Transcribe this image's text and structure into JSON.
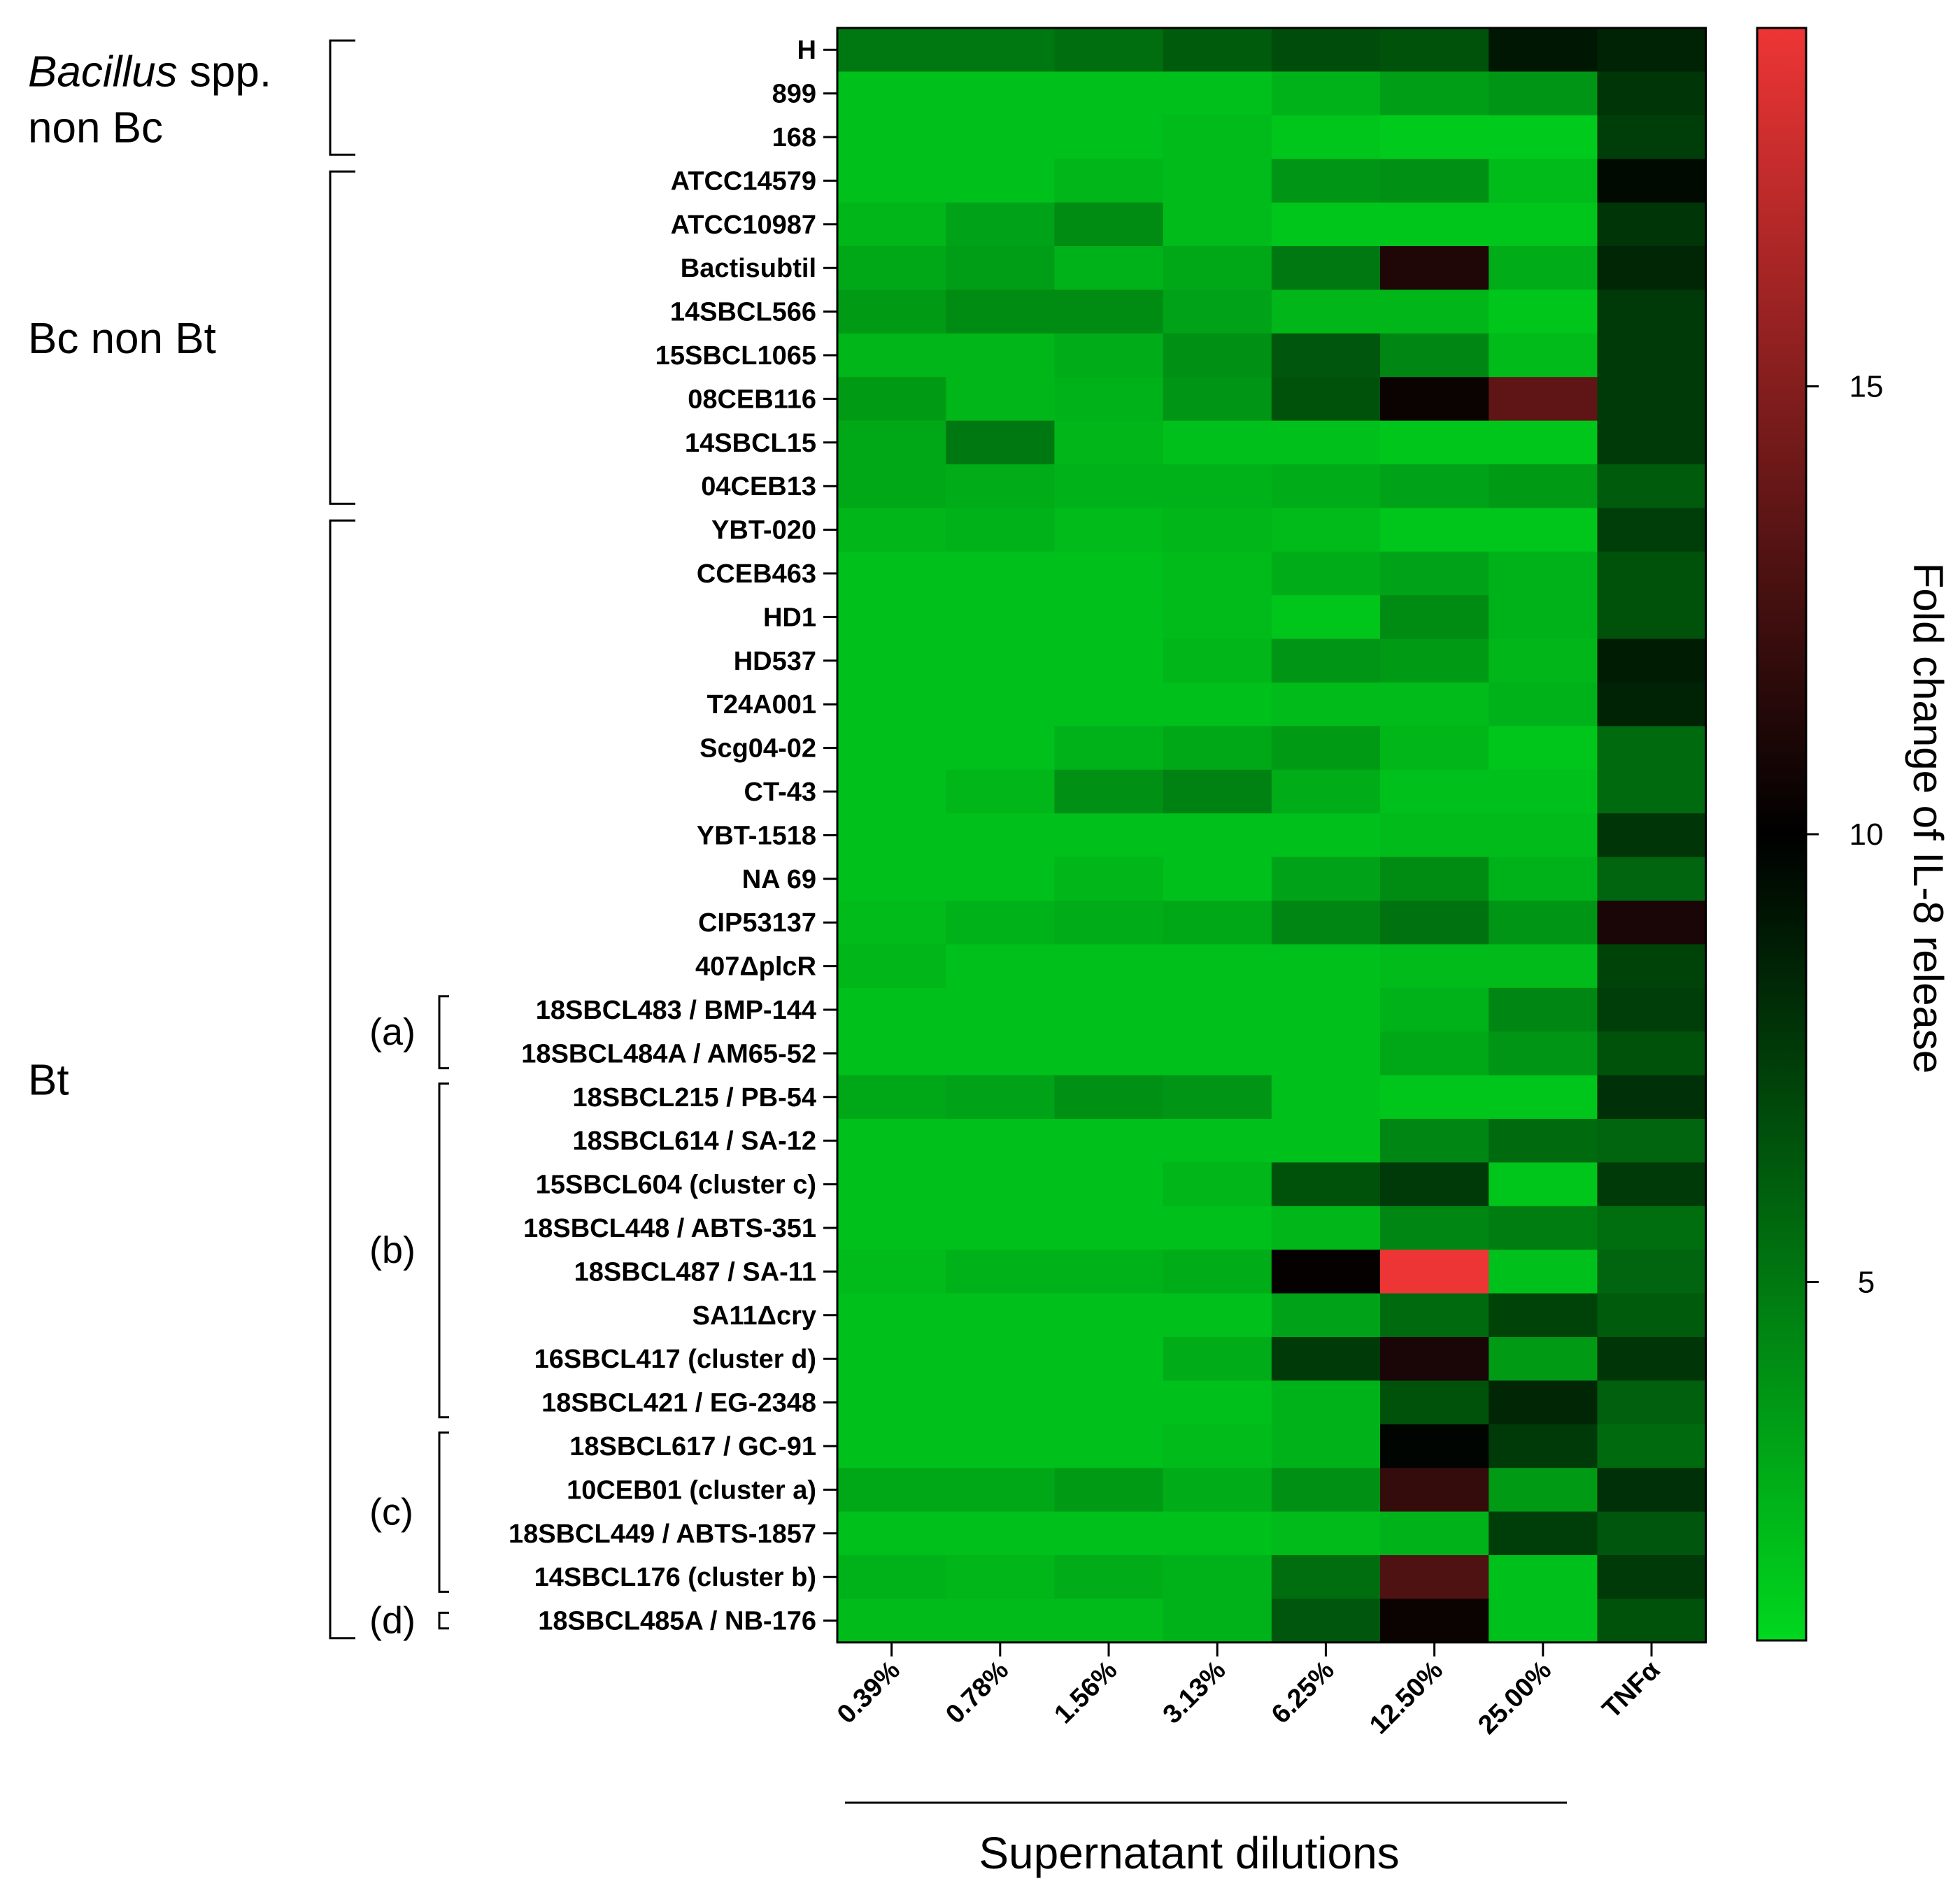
{
  "chart_data": {
    "type": "heatmap",
    "xlabel": "Supernatant dilutions",
    "colorbar": {
      "label": "Fold change of IL-8 release",
      "range": [
        1,
        19
      ],
      "ticks": [
        5,
        10,
        15
      ],
      "colors": {
        "low": "#00d81e",
        "mid": "#000000",
        "high": "#ee3535"
      },
      "mid_value": 10
    },
    "columns": [
      "0.39%",
      "0.78%",
      "1.56%",
      "3.13%",
      "6.25%",
      "12.50%",
      "25.00%",
      "TNFα"
    ],
    "rows": [
      "H",
      "899",
      "168",
      "ATCC14579",
      "ATCC10987",
      "Bactisubtil",
      "14SBCL566",
      "15SBCL1065",
      "08CEB116",
      "14SBCL15",
      "04CEB13",
      "YBT-020",
      "CCEB463",
      "HD1",
      "HD537",
      "T24A001",
      "Scg04-02",
      "CT-43",
      "YBT-1518",
      "NA 69",
      "CIP53137",
      "407ΔplcR",
      "18SBCL483 / BMP-144",
      "18SBCL484A / AM65-52",
      "18SBCL215 / PB-54",
      "18SBCL614 / SA-12",
      "15SBCL604 (cluster c)",
      "18SBCL448 / ABTS-351",
      "18SBCL487 / SA-11",
      "SA11Δcry",
      "16SBCL417 (cluster d)",
      "18SBCL421 / EG-2348",
      "18SBCL617 / GC-91",
      "10CEB01 (cluster a)",
      "18SBCL449 / ABTS-1857",
      "14SBCL176 (cluster b)",
      "18SBCL485A / NB-176"
    ],
    "values": [
      [
        5.0,
        5.0,
        5.4,
        6.2,
        6.8,
        6.6,
        9.0,
        8.6
      ],
      [
        2.0,
        2.0,
        2.0,
        2.0,
        2.6,
        3.4,
        3.8,
        7.8
      ],
      [
        2.0,
        2.0,
        2.0,
        2.2,
        1.8,
        1.6,
        1.6,
        7.4
      ],
      [
        2.0,
        2.0,
        2.4,
        2.2,
        3.8,
        4.0,
        2.2,
        9.6
      ],
      [
        2.4,
        3.2,
        4.2,
        2.2,
        1.8,
        1.8,
        1.8,
        7.8
      ],
      [
        3.0,
        3.4,
        2.6,
        3.0,
        5.0,
        11.2,
        2.8,
        8.4
      ],
      [
        3.6,
        4.2,
        4.2,
        3.2,
        2.4,
        2.4,
        1.8,
        7.6
      ],
      [
        2.4,
        2.4,
        2.8,
        4.0,
        6.4,
        4.4,
        2.2,
        7.6
      ],
      [
        3.6,
        2.4,
        2.6,
        3.8,
        6.6,
        10.4,
        13.6,
        7.6
      ],
      [
        3.0,
        5.0,
        2.4,
        2.0,
        2.0,
        1.8,
        1.8,
        7.6
      ],
      [
        3.0,
        2.8,
        2.6,
        2.6,
        2.8,
        3.2,
        3.6,
        6.2
      ],
      [
        2.4,
        2.6,
        2.2,
        2.4,
        2.2,
        1.8,
        1.8,
        7.4
      ],
      [
        2.0,
        2.0,
        2.0,
        2.2,
        2.8,
        3.2,
        2.6,
        6.6
      ],
      [
        2.0,
        2.0,
        2.0,
        2.2,
        1.8,
        4.2,
        2.6,
        6.6
      ],
      [
        2.0,
        2.0,
        2.0,
        2.4,
        3.8,
        3.6,
        2.4,
        8.8
      ],
      [
        2.0,
        2.0,
        2.0,
        2.0,
        2.2,
        2.2,
        2.6,
        8.6
      ],
      [
        2.0,
        2.0,
        2.6,
        3.0,
        3.6,
        2.4,
        1.8,
        5.6
      ],
      [
        2.0,
        2.4,
        4.0,
        4.6,
        2.8,
        2.0,
        2.0,
        5.6
      ],
      [
        2.0,
        2.0,
        2.0,
        2.0,
        2.0,
        2.2,
        2.2,
        7.8
      ],
      [
        2.0,
        2.0,
        2.4,
        2.0,
        3.2,
        4.2,
        2.6,
        5.8
      ],
      [
        2.2,
        2.6,
        2.8,
        3.0,
        4.4,
        5.2,
        3.8,
        11.0
      ],
      [
        2.4,
        2.0,
        2.0,
        2.0,
        2.0,
        2.2,
        2.2,
        7.2
      ],
      [
        2.0,
        2.0,
        2.0,
        2.0,
        2.0,
        2.6,
        4.4,
        7.4
      ],
      [
        2.0,
        2.0,
        2.0,
        2.0,
        2.0,
        3.0,
        3.8,
        6.6
      ],
      [
        3.0,
        3.2,
        4.0,
        3.8,
        2.0,
        1.8,
        1.8,
        8.0
      ],
      [
        2.0,
        2.0,
        2.0,
        2.0,
        2.0,
        4.4,
        5.6,
        5.8
      ],
      [
        2.0,
        2.0,
        2.0,
        2.4,
        6.6,
        7.6,
        1.8,
        7.6
      ],
      [
        2.0,
        2.0,
        2.0,
        2.0,
        2.4,
        4.4,
        4.8,
        5.4
      ],
      [
        2.2,
        2.6,
        2.6,
        2.8,
        10.2,
        19.0,
        2.0,
        5.8
      ],
      [
        2.0,
        2.0,
        2.0,
        2.0,
        3.2,
        5.6,
        7.2,
        6.2
      ],
      [
        2.0,
        2.0,
        2.0,
        2.8,
        7.6,
        11.0,
        3.6,
        7.8
      ],
      [
        2.0,
        2.0,
        2.0,
        2.0,
        2.6,
        6.6,
        8.4,
        6.0
      ],
      [
        2.0,
        2.0,
        2.0,
        2.2,
        2.6,
        9.8,
        7.6,
        5.6
      ],
      [
        3.0,
        3.0,
        3.6,
        2.8,
        4.0,
        12.0,
        3.6,
        8.0
      ],
      [
        2.0,
        2.0,
        2.0,
        2.0,
        2.2,
        2.6,
        7.4,
        6.4
      ],
      [
        2.6,
        2.4,
        2.8,
        2.6,
        5.4,
        13.0,
        2.0,
        7.6
      ],
      [
        2.2,
        2.2,
        2.2,
        2.6,
        6.4,
        10.4,
        2.0,
        6.6
      ]
    ],
    "groups": [
      {
        "label": "Bacillus",
        "label_suffix": " spp.",
        "label_line2": "non Bc",
        "rows": [
          0,
          2
        ]
      },
      {
        "label": "Bc non Bt",
        "rows": [
          3,
          10
        ]
      },
      {
        "label": "Bt",
        "rows": [
          11,
          36
        ]
      }
    ],
    "subgroups": [
      {
        "label": "(a)",
        "rows": [
          22,
          23
        ]
      },
      {
        "label": "(b)",
        "rows": [
          24,
          31
        ]
      },
      {
        "label": "(c)",
        "rows": [
          32,
          35
        ]
      },
      {
        "label": "(d)",
        "rows": [
          36,
          36
        ]
      }
    ]
  }
}
